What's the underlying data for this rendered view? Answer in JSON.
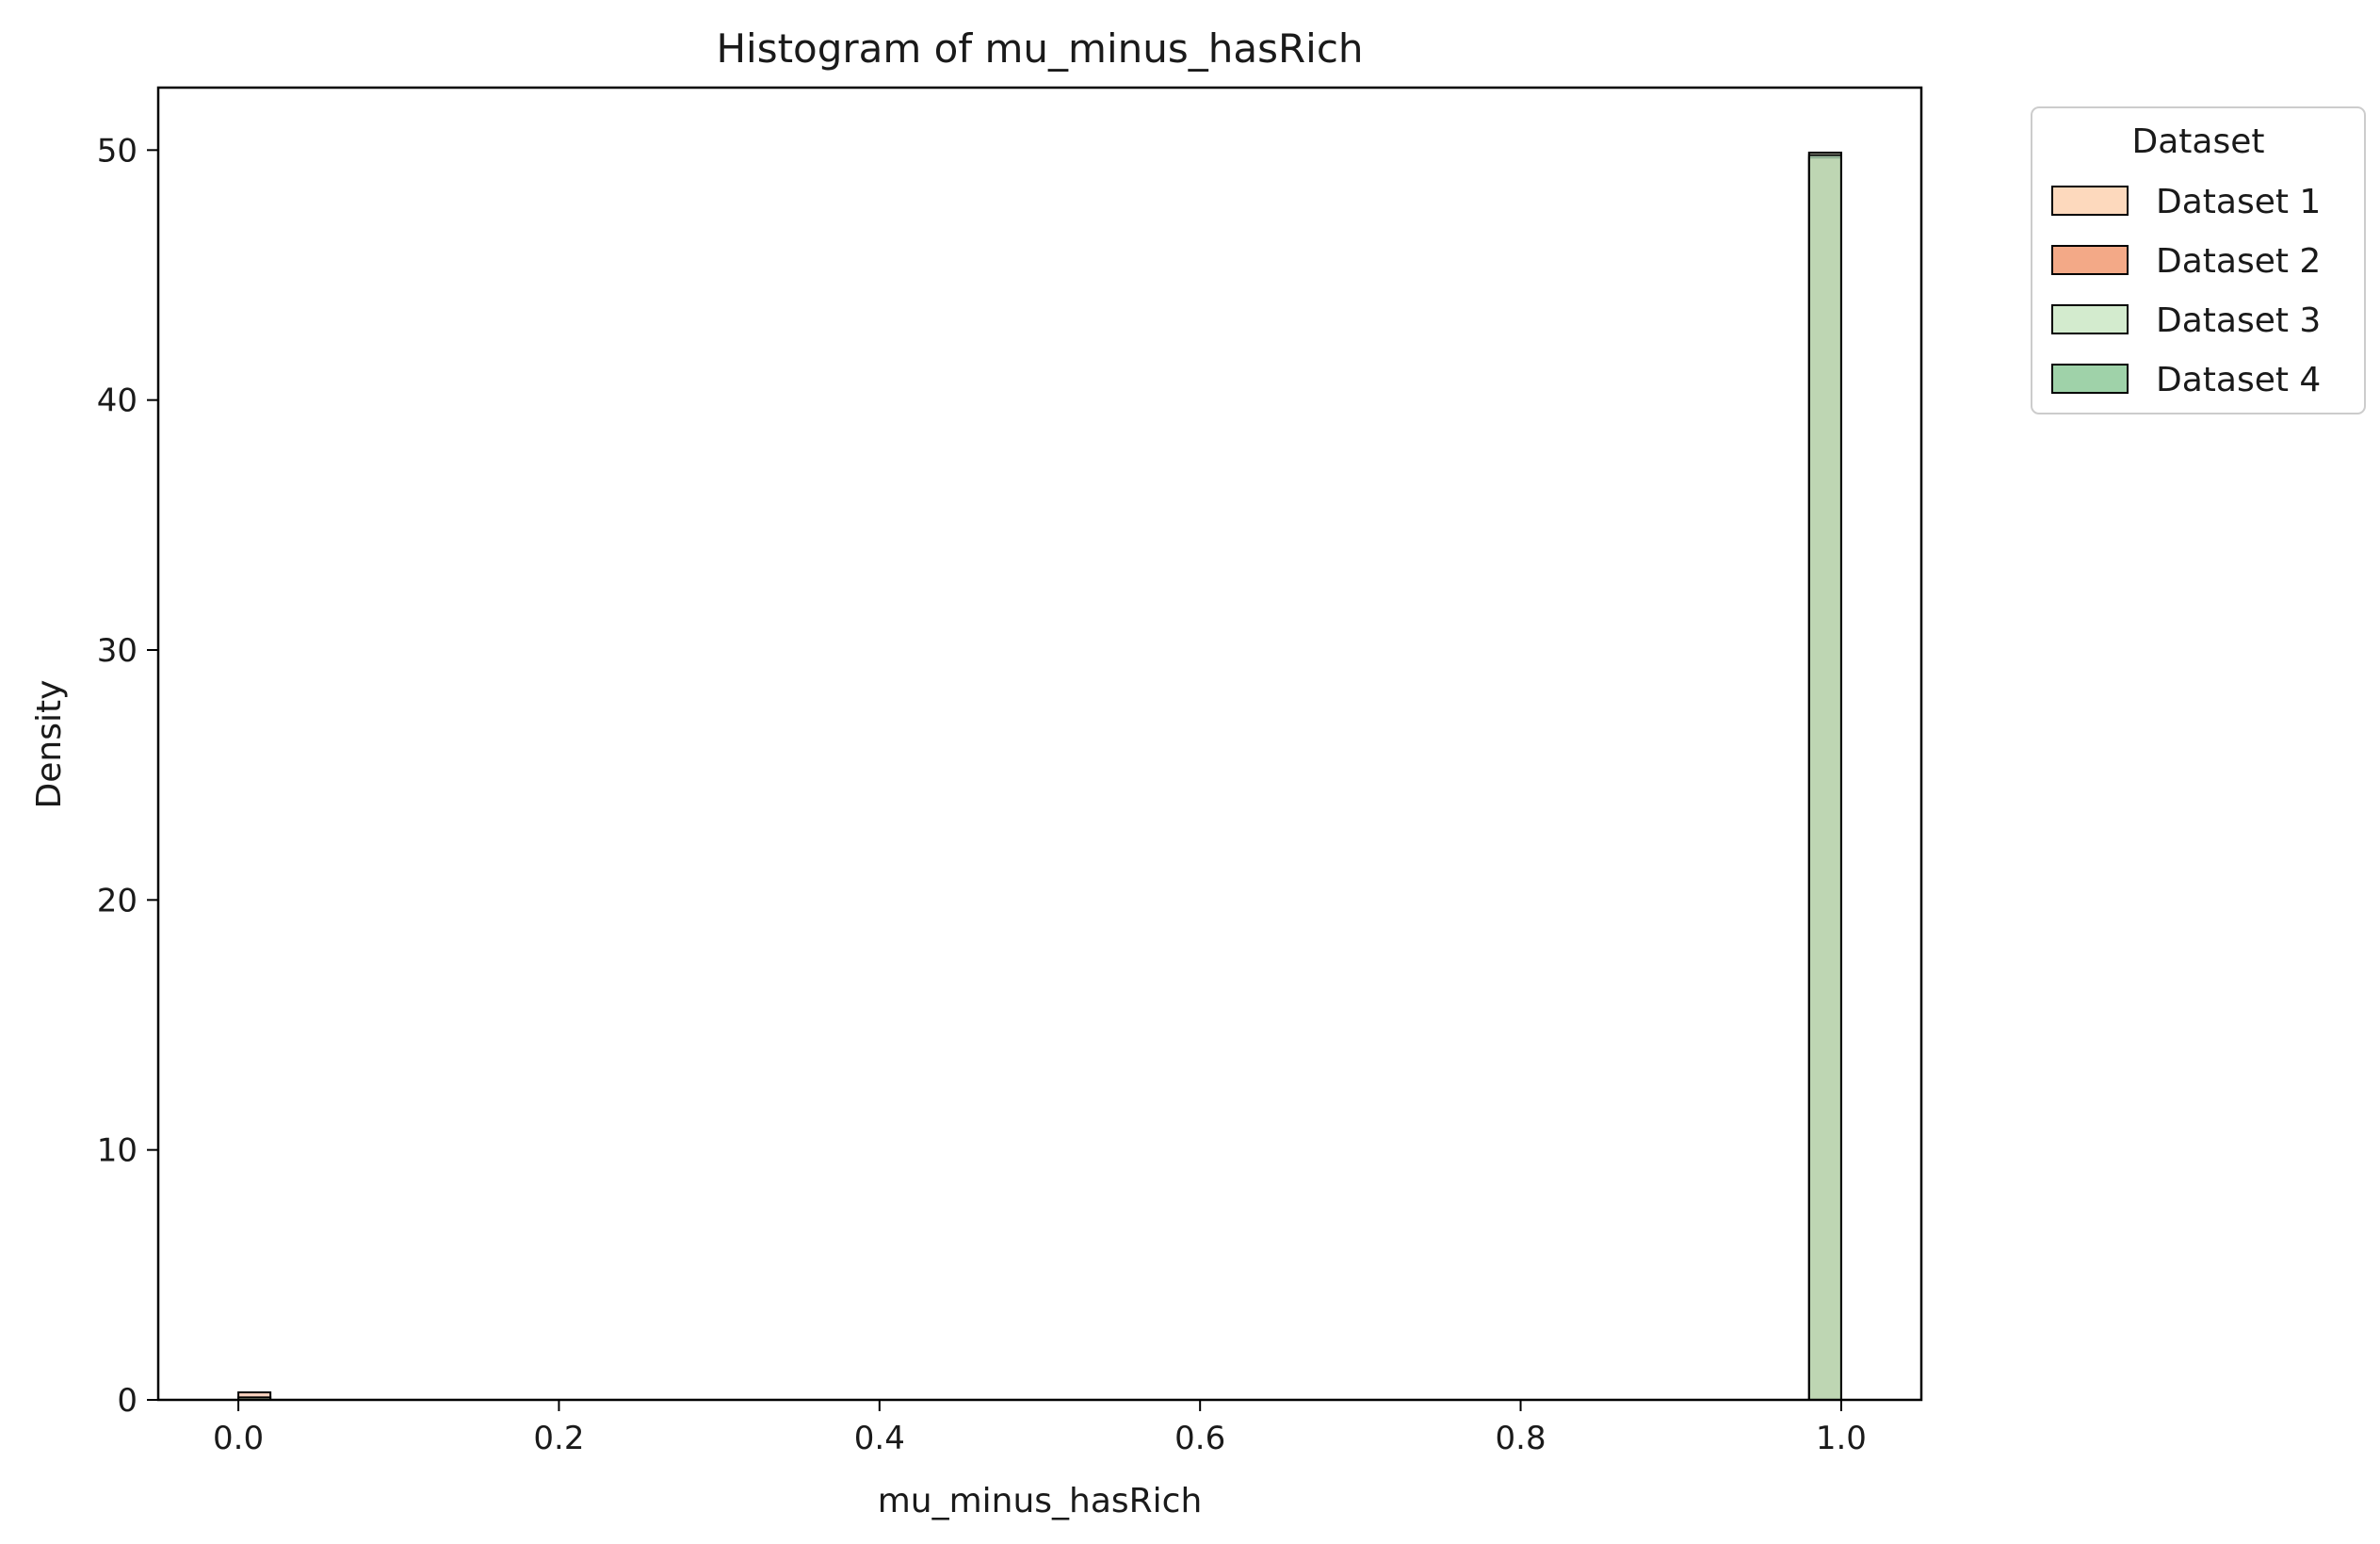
{
  "chart_data": {
    "type": "bar",
    "title": "Histogram of mu_minus_hasRich",
    "xlabel": "mu_minus_hasRich",
    "ylabel": "Density",
    "xlim": [
      -0.05,
      1.05
    ],
    "ylim": [
      0,
      52.5
    ],
    "xticks": [
      "0.0",
      "0.2",
      "0.4",
      "0.6",
      "0.8",
      "1.0"
    ],
    "yticks": [
      "0",
      "10",
      "20",
      "30",
      "40",
      "50"
    ],
    "grid": false,
    "legend": {
      "title": "Dataset",
      "placement": "outside-top-right"
    },
    "bin_width": 0.02,
    "series": [
      {
        "name": "Dataset 1",
        "color": "#fdd9bd",
        "bins": [
          [
            0.0,
            0.0
          ],
          [
            0.98,
            49.9
          ]
        ]
      },
      {
        "name": "Dataset 2",
        "color": "#f3a987",
        "bins": [
          [
            0.0,
            0.3
          ],
          [
            0.98,
            49.7
          ]
        ]
      },
      {
        "name": "Dataset 3",
        "color": "#d3ebce",
        "bins": [
          [
            0.0,
            0.0
          ],
          [
            0.98,
            49.9
          ]
        ]
      },
      {
        "name": "Dataset 4",
        "color": "#9fd2a9",
        "bins": [
          [
            0.0,
            0.1
          ],
          [
            0.98,
            49.8
          ]
        ]
      }
    ]
  }
}
